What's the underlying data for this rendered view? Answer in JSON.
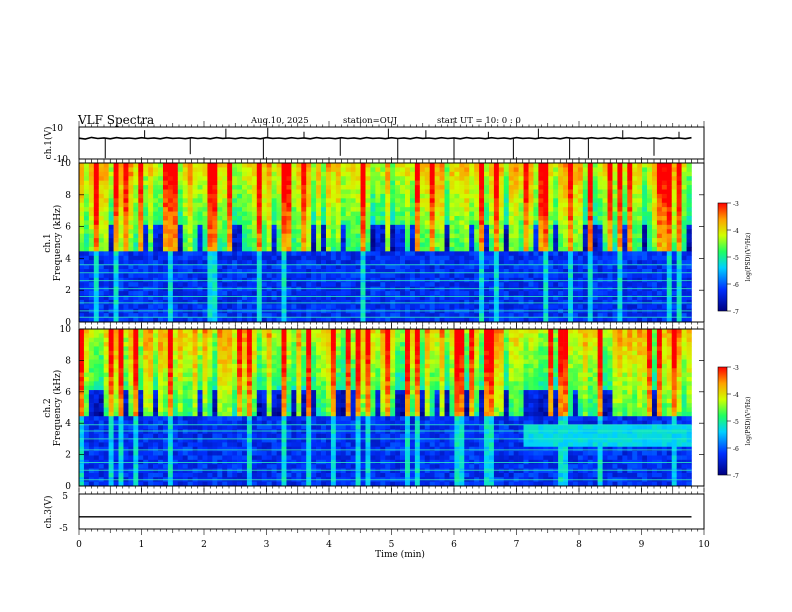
{
  "header": {
    "title": "VLF Spectra",
    "date": "Aug.10, 2025",
    "station": "station=OUJ",
    "start_ut": "start  UT =   10: 0  : 0"
  },
  "chart_data": [
    {
      "type": "line",
      "title": "",
      "ylabel": "ch.1(V)",
      "ylim": [
        -10,
        10
      ],
      "yticks": [
        "10",
        "-10"
      ],
      "description": "ch.1 waveform, baseline near +3 V with impulsive spikes",
      "baseline": 3,
      "x": [
        0,
        0.1,
        0.2,
        0.3,
        0.4,
        0.5,
        0.6,
        0.7,
        0.8,
        0.9,
        1,
        1.1,
        1.2,
        1.3,
        1.4,
        1.5,
        1.6,
        1.7,
        1.8,
        1.9,
        2,
        2.1,
        2.2,
        2.3,
        2.4,
        2.5,
        2.6,
        2.7,
        2.8,
        2.9,
        3,
        3.1,
        3.2,
        3.3,
        3.4,
        3.5,
        3.6,
        3.7,
        3.8,
        3.9,
        4,
        4.1,
        4.2,
        4.3,
        4.4,
        4.5,
        4.6,
        4.7,
        4.8,
        4.9,
        5,
        5.1,
        5.2,
        5.3,
        5.4,
        5.5,
        5.6,
        5.7,
        5.8,
        5.9,
        6,
        6.1,
        6.2,
        6.3,
        6.4,
        6.5,
        6.6,
        6.7,
        6.8,
        6.9,
        7,
        7.1,
        7.2,
        7.3,
        7.4,
        7.5,
        7.6,
        7.7,
        7.8,
        7.9,
        8,
        8.1,
        8.2,
        8.3,
        8.4,
        8.5,
        8.6,
        8.7,
        8.8,
        8.9,
        9,
        9.1,
        9.2,
        9.3,
        9.4,
        9.5,
        9.6,
        9.7,
        9.8
      ],
      "values": [
        3,
        2.5,
        3.5,
        2.8,
        3.2,
        2.6,
        3.4,
        2.9,
        3.1,
        2.7,
        3.3,
        2.8,
        3.2,
        2.6,
        3.4,
        2.9,
        3.1,
        2.7,
        3.3,
        2.8,
        3.2,
        2.6,
        3.4,
        2.9,
        3.1,
        2.7,
        3.3,
        2.8,
        3.2,
        2.6,
        3.4,
        2.9,
        3.1,
        2.7,
        3.3,
        2.8,
        3.2,
        2.6,
        3.4,
        2.9,
        3.1,
        2.7,
        3.3,
        2.8,
        3.2,
        2.6,
        3.4,
        2.9,
        3.1,
        2.7,
        3.3,
        2.8,
        3.2,
        2.6,
        3.4,
        2.9,
        3.1,
        2.7,
        3.3,
        2.8,
        3.2,
        2.6,
        3.4,
        2.9,
        3.1,
        2.7,
        3.3,
        2.8,
        3.2,
        2.6,
        3.4,
        2.9,
        3.1,
        2.7,
        3.3,
        2.8,
        3.2,
        2.6,
        3.4,
        2.9,
        3.1,
        2.7,
        3.3,
        2.8,
        3.2,
        2.6,
        3.4,
        2.9,
        3.1,
        2.7,
        3.3,
        2.8,
        3.2,
        2.6,
        3.4,
        2.9,
        3.1,
        2.7,
        3.3
      ],
      "spikes": [
        {
          "t": 0.42,
          "v": -9.5
        },
        {
          "t": 1.05,
          "v": 8
        },
        {
          "t": 1.78,
          "v": -7
        },
        {
          "t": 2.35,
          "v": 9
        },
        {
          "t": 2.95,
          "v": -9.8
        },
        {
          "t": 3.02,
          "v": 9.5
        },
        {
          "t": 3.6,
          "v": 7
        },
        {
          "t": 4.18,
          "v": -8
        },
        {
          "t": 4.95,
          "v": 9
        },
        {
          "t": 5.1,
          "v": -9.8
        },
        {
          "t": 5.55,
          "v": 8
        },
        {
          "t": 6.0,
          "v": -9.8
        },
        {
          "t": 6.55,
          "v": 7
        },
        {
          "t": 6.95,
          "v": -9.8
        },
        {
          "t": 7.35,
          "v": 9
        },
        {
          "t": 7.85,
          "v": -9.8
        },
        {
          "t": 8.15,
          "v": -9.5
        },
        {
          "t": 8.7,
          "v": 8
        },
        {
          "t": 9.2,
          "v": -8
        },
        {
          "t": 9.6,
          "v": 7
        }
      ]
    },
    {
      "type": "heatmap",
      "title": "",
      "ylabel": "Frequency (kHz)",
      "channel_label": "ch.1",
      "ylim": [
        0,
        10
      ],
      "yticks": [
        "0",
        "2",
        "4",
        "6",
        "8",
        "10"
      ],
      "colorbar": {
        "label": "log(PSD)(V²/Hz)",
        "range": [
          -7,
          -3
        ],
        "ticks": [
          "-3",
          "-4",
          "-5",
          "-6",
          "-7"
        ]
      },
      "features": {
        "low_band_top_khz": 4.5,
        "tone_lines_khz": [
          0.3,
          0.7,
          1.2,
          1.6,
          2.1,
          2.6,
          3.1,
          3.6
        ]
      }
    },
    {
      "type": "heatmap",
      "title": "",
      "ylabel": "Frequency (kHz)",
      "channel_label": "ch.2",
      "ylim": [
        0,
        10
      ],
      "yticks": [
        "0",
        "2",
        "4",
        "6",
        "8",
        "10"
      ],
      "colorbar": {
        "label": "log(PSD)(V²/Hz)",
        "range": [
          -7,
          -3
        ],
        "ticks": [
          "-3",
          "-4",
          "-5",
          "-6",
          "-7"
        ]
      },
      "features": {
        "low_band_top_khz": 4.5,
        "tone_lines_khz": [
          0.4,
          1.0,
          1.5,
          2.3,
          3.0,
          3.5,
          3.9
        ],
        "enhanced_region_min": [
          7.1,
          9.8
        ],
        "enhanced_region_khz": [
          2.5,
          4.0
        ]
      }
    },
    {
      "type": "line",
      "title": "",
      "ylabel": "ch.3(V)",
      "xlabel": "Time (min)",
      "xlim": [
        0,
        10
      ],
      "xticks": [
        "0",
        "1",
        "2",
        "3",
        "4",
        "5",
        "6",
        "7",
        "8",
        "9",
        "10"
      ],
      "ylim": [
        -5,
        5
      ],
      "yticks": [
        "5",
        "-5"
      ],
      "x": [
        0,
        9.8
      ],
      "values": [
        -1.5,
        -1.5
      ]
    }
  ]
}
